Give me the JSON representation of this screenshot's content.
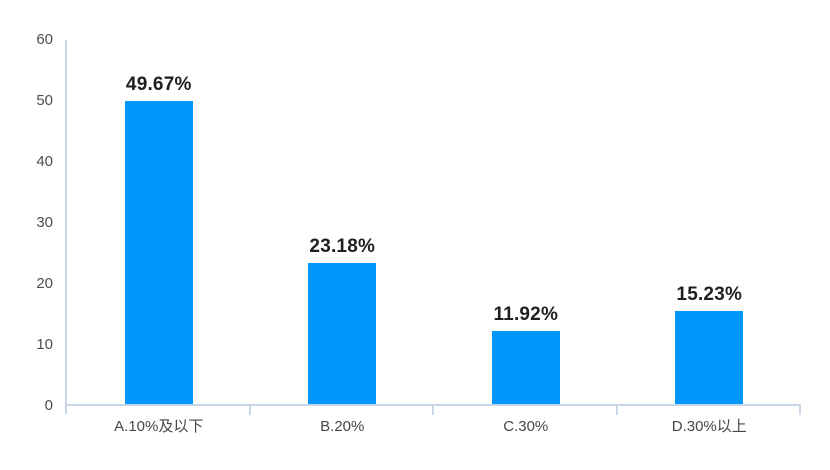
{
  "chart_data": {
    "type": "bar",
    "title": "",
    "categories": [
      "A.10%及以下",
      "B.20%",
      "C.30%",
      "D.30%以上"
    ],
    "values": [
      49.67,
      23.18,
      11.92,
      15.23
    ],
    "data_labels": [
      "49.67%",
      "23.18%",
      "11.92%",
      "15.23%"
    ],
    "ylim": [
      0,
      60
    ],
    "yticks": [
      0,
      10,
      20,
      30,
      40,
      50,
      60
    ],
    "xlabel": "",
    "ylabel": "",
    "grid": false,
    "legend": false,
    "colors": {
      "bar": "#0096FB",
      "axis": "#C9D6E8",
      "y_tick_label": "#4d4d4d",
      "x_tick_label": "#474747",
      "data_label": "#1f1f1f",
      "background": "#ffffff"
    }
  }
}
